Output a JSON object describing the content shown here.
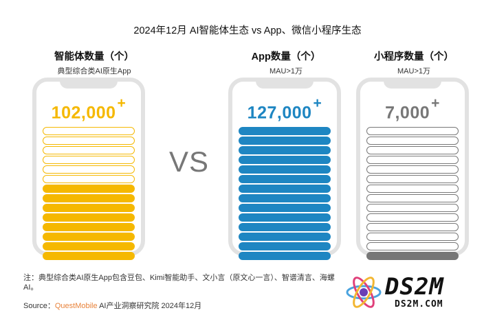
{
  "title": "2024年12月 AI智能体生态 vs App、微信小程序生态",
  "vs_label": "VS",
  "chart_data": {
    "type": "bar",
    "title": "2024年12月 AI智能体生态 vs App、微信小程序生态",
    "columns": [
      {
        "heading": "智能体数量（个）",
        "subheading": "典型综合类AI原生App",
        "value": 102000,
        "value_label": "102,000",
        "plus": "+",
        "color": "#f5b800",
        "total_slots": 14,
        "filled_slots": 8
      },
      {
        "heading": "App数量（个）",
        "subheading": "MAU>1万",
        "value": 127000,
        "value_label": "127,000",
        "plus": "+",
        "color": "#1e86c2",
        "total_slots": 14,
        "filled_slots": 14
      },
      {
        "heading": "小程序数量（个）",
        "subheading": "MAU>1万",
        "value": 7000,
        "value_label": "7,000",
        "plus": "+",
        "color": "#777777",
        "total_slots": 14,
        "filled_slots": 1
      }
    ]
  },
  "footer": {
    "note": "注：典型综合类AI原生App包含豆包、Kimi智能助手、文小言（原文心一言）、智谱清言、海螺AI。",
    "source_prefix": "Source：",
    "source_brand": "QuestMobile",
    "source_rest": " AI产业洞察研究院 2024年12月"
  },
  "watermark": {
    "big": "DS2M",
    "small": "DS2M.COM"
  }
}
